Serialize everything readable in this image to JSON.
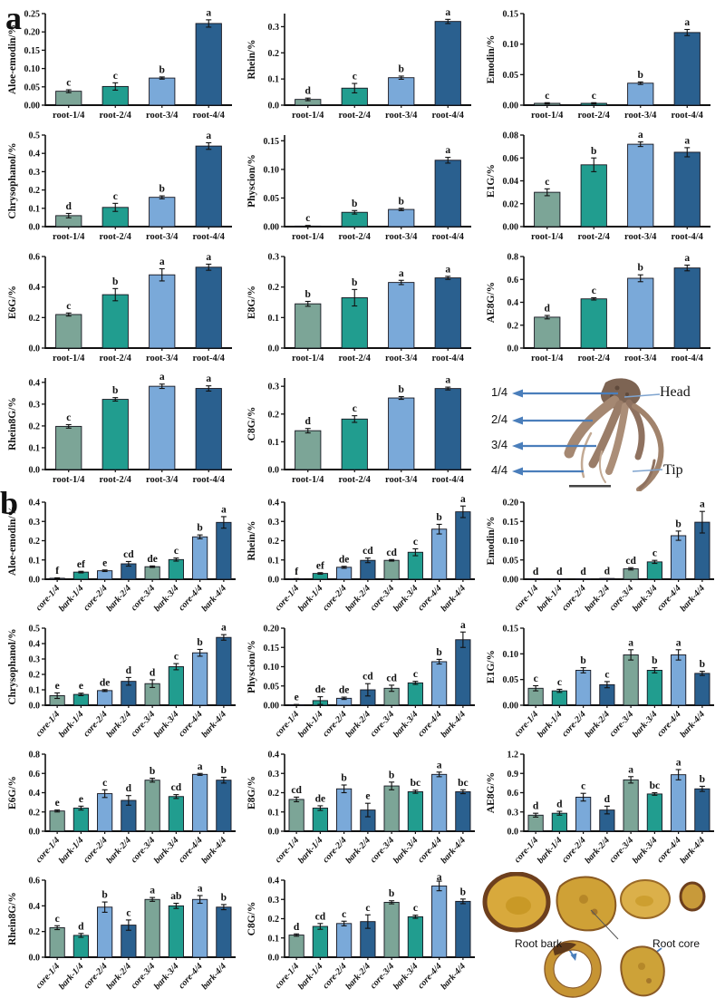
{
  "figure": {
    "panel_a_label": "a",
    "panel_b_label": "b"
  },
  "colors": {
    "bar_cycle": [
      "#7CA597",
      "#219D8F",
      "#7AA9D9",
      "#2A608F"
    ],
    "bar_stroke": "#15151f",
    "axis": "#111111",
    "error_bar": "#111111",
    "arrow_blue": "#4A7EBB",
    "slice_yellow": "#D2A338",
    "slice_rim_brown": "#6D3F1D",
    "root_brown": "#A58872"
  },
  "photos": {
    "a": {
      "sections": [
        "1/4",
        "2/4",
        "3/4",
        "4/4"
      ],
      "head": "Head",
      "tip": "Tip"
    },
    "b": {
      "bark": "Root bark",
      "core": "Root core"
    }
  },
  "chart_data": [
    {
      "panel": "a",
      "index": 0,
      "type": "bar",
      "ylabel": "Aloe-emodin/%",
      "ylim": [
        0,
        0.25
      ],
      "yticks": [
        "0.00",
        "0.05",
        "0.10",
        "0.15",
        "0.20",
        "0.25"
      ],
      "categories": [
        "root-1/4",
        "root-2/4",
        "root-3/4",
        "root-4/4"
      ],
      "values": [
        0.038,
        0.051,
        0.074,
        0.223
      ],
      "errors": [
        0.004,
        0.01,
        0.003,
        0.01
      ],
      "letters": [
        "c",
        "c",
        "b",
        "a"
      ]
    },
    {
      "panel": "a",
      "index": 1,
      "type": "bar",
      "ylabel": "Rhein/%",
      "ylim": [
        0,
        0.35
      ],
      "yticks": [
        "0.0",
        "0.1",
        "0.2",
        "0.3"
      ],
      "categories": [
        "root-1/4",
        "root-2/4",
        "root-3/4",
        "root-4/4"
      ],
      "values": [
        0.022,
        0.065,
        0.105,
        0.32
      ],
      "errors": [
        0.005,
        0.018,
        0.006,
        0.008
      ],
      "letters": [
        "d",
        "c",
        "b",
        "a"
      ]
    },
    {
      "panel": "a",
      "index": 2,
      "type": "bar",
      "ylabel": "Emodin/%",
      "ylim": [
        0,
        0.15
      ],
      "yticks": [
        "0.00",
        "0.05",
        "0.10",
        "0.15"
      ],
      "categories": [
        "root-1/4",
        "root-2/4",
        "root-3/4",
        "root-4/4"
      ],
      "values": [
        0.003,
        0.003,
        0.036,
        0.119
      ],
      "errors": [
        0.001,
        0.001,
        0.002,
        0.005
      ],
      "letters": [
        "c",
        "c",
        "b",
        "a"
      ]
    },
    {
      "panel": "a",
      "index": 3,
      "type": "bar",
      "ylabel": "Chrysophanol/%",
      "ylim": [
        0,
        0.5
      ],
      "yticks": [
        "0.0",
        "0.1",
        "0.2",
        "0.3",
        "0.4",
        "0.5"
      ],
      "categories": [
        "root-1/4",
        "root-2/4",
        "root-3/4",
        "root-4/4"
      ],
      "values": [
        0.06,
        0.105,
        0.16,
        0.44
      ],
      "errors": [
        0.012,
        0.022,
        0.008,
        0.018
      ],
      "letters": [
        "d",
        "c",
        "b",
        "a"
      ]
    },
    {
      "panel": "a",
      "index": 4,
      "type": "bar",
      "ylabel": "Physcion/%",
      "ylim": [
        0,
        0.16
      ],
      "yticks": [
        "0.00",
        "0.05",
        "0.10",
        "0.15"
      ],
      "categories": [
        "root-1/4",
        "root-2/4",
        "root-3/4",
        "root-4/4"
      ],
      "values": [
        0.001,
        0.025,
        0.03,
        0.116
      ],
      "errors": [
        0.001,
        0.003,
        0.002,
        0.005
      ],
      "letters": [
        "c",
        "b",
        "b",
        "a"
      ]
    },
    {
      "panel": "a",
      "index": 5,
      "type": "bar",
      "ylabel": "E1G/%",
      "ylim": [
        0,
        0.08
      ],
      "yticks": [
        "0.00",
        "0.02",
        "0.04",
        "0.06",
        "0.08"
      ],
      "categories": [
        "root-1/4",
        "root-2/4",
        "root-3/4",
        "root-4/4"
      ],
      "values": [
        0.03,
        0.054,
        0.072,
        0.065
      ],
      "errors": [
        0.003,
        0.006,
        0.002,
        0.004
      ],
      "letters": [
        "c",
        "b",
        "a",
        "a"
      ]
    },
    {
      "panel": "a",
      "index": 6,
      "type": "bar",
      "ylabel": "E6G/%",
      "ylim": [
        0,
        0.6
      ],
      "yticks": [
        "0.0",
        "0.2",
        "0.4",
        "0.6"
      ],
      "categories": [
        "root-1/4",
        "root-2/4",
        "root-3/4",
        "root-4/4"
      ],
      "values": [
        0.22,
        0.35,
        0.48,
        0.53
      ],
      "errors": [
        0.01,
        0.04,
        0.04,
        0.02
      ],
      "letters": [
        "c",
        "b",
        "a",
        "a"
      ]
    },
    {
      "panel": "a",
      "index": 7,
      "type": "bar",
      "ylabel": "E8G/%",
      "ylim": [
        0,
        0.3
      ],
      "yticks": [
        "0.0",
        "0.1",
        "0.2",
        "0.3"
      ],
      "categories": [
        "root-1/4",
        "root-2/4",
        "root-3/4",
        "root-4/4"
      ],
      "values": [
        0.145,
        0.165,
        0.215,
        0.23
      ],
      "errors": [
        0.008,
        0.027,
        0.007,
        0.005
      ],
      "letters": [
        "b",
        "b",
        "a",
        "a"
      ]
    },
    {
      "panel": "a",
      "index": 8,
      "type": "bar",
      "ylabel": "AE8G/%",
      "ylim": [
        0,
        0.8
      ],
      "yticks": [
        "0.0",
        "0.2",
        "0.4",
        "0.6",
        "0.8"
      ],
      "categories": [
        "root-1/4",
        "root-2/4",
        "root-3/4",
        "root-4/4"
      ],
      "values": [
        0.27,
        0.43,
        0.61,
        0.7
      ],
      "errors": [
        0.015,
        0.01,
        0.03,
        0.025
      ],
      "letters": [
        "d",
        "c",
        "b",
        "a"
      ]
    },
    {
      "panel": "a",
      "index": 9,
      "type": "bar",
      "ylabel": "Rhein8G/%",
      "ylim": [
        0,
        0.42
      ],
      "yticks": [
        "0.0",
        "0.1",
        "0.2",
        "0.3",
        "0.4"
      ],
      "categories": [
        "root-1/4",
        "root-2/4",
        "root-3/4",
        "root-4/4"
      ],
      "values": [
        0.198,
        0.322,
        0.382,
        0.372
      ],
      "errors": [
        0.008,
        0.008,
        0.01,
        0.012
      ],
      "letters": [
        "c",
        "b",
        "a",
        "a"
      ]
    },
    {
      "panel": "a",
      "index": 10,
      "type": "bar",
      "ylabel": "C8G/%",
      "ylim": [
        0,
        0.33
      ],
      "yticks": [
        "0.0",
        "0.1",
        "0.2",
        "0.3"
      ],
      "categories": [
        "root-1/4",
        "root-2/4",
        "root-3/4",
        "root-4/4"
      ],
      "values": [
        0.14,
        0.182,
        0.258,
        0.292
      ],
      "errors": [
        0.008,
        0.012,
        0.005,
        0.005
      ],
      "letters": [
        "d",
        "c",
        "b",
        "a"
      ]
    },
    {
      "panel": "b",
      "index": 0,
      "type": "bar",
      "ylabel": "Aloe-emodin/%",
      "ylim": [
        0,
        0.4
      ],
      "yticks": [
        "0.0",
        "0.1",
        "0.2",
        "0.3",
        "0.4"
      ],
      "categories": [
        "core-1/4",
        "bark-1/4",
        "core-2/4",
        "bark-2/4",
        "core-3/4",
        "bark-3/4",
        "core-4/4",
        "bark-4/4"
      ],
      "values": [
        0.005,
        0.037,
        0.044,
        0.08,
        0.065,
        0.102,
        0.22,
        0.295
      ],
      "errors": [
        0.002,
        0.004,
        0.004,
        0.012,
        0.004,
        0.008,
        0.01,
        0.03
      ],
      "letters": [
        "f",
        "ef",
        "e",
        "cd",
        "de",
        "c",
        "b",
        "a"
      ]
    },
    {
      "panel": "b",
      "index": 1,
      "type": "bar",
      "ylabel": "Rhein/%",
      "ylim": [
        0,
        0.4
      ],
      "yticks": [
        "0.0",
        "0.1",
        "0.2",
        "0.3",
        "0.4"
      ],
      "categories": [
        "core-1/4",
        "bark-1/4",
        "core-2/4",
        "bark-2/4",
        "core-3/4",
        "bark-3/4",
        "core-4/4",
        "bark-4/4"
      ],
      "values": [
        0.002,
        0.03,
        0.062,
        0.098,
        0.098,
        0.14,
        0.26,
        0.35
      ],
      "errors": [
        0.001,
        0.004,
        0.005,
        0.012,
        0.004,
        0.018,
        0.025,
        0.03
      ],
      "letters": [
        "f",
        "ef",
        "de",
        "cd",
        "cd",
        "c",
        "b",
        "a"
      ]
    },
    {
      "panel": "b",
      "index": 2,
      "type": "bar",
      "ylabel": "Emodin/%",
      "ylim": [
        0,
        0.2
      ],
      "yticks": [
        "0.00",
        "0.05",
        "0.10",
        "0.15",
        "0.20"
      ],
      "categories": [
        "core-1/4",
        "bark-1/4",
        "core-2/4",
        "bark-2/4",
        "core-3/4",
        "bark-3/4",
        "core-4/4",
        "bark-4/4"
      ],
      "values": [
        0.001,
        0.001,
        0.001,
        0.002,
        0.027,
        0.045,
        0.113,
        0.148
      ],
      "errors": [
        0,
        0,
        0,
        0,
        0.003,
        0.004,
        0.012,
        0.028
      ],
      "letters": [
        "d",
        "d",
        "d",
        "d",
        "cd",
        "c",
        "b",
        "a"
      ]
    },
    {
      "panel": "b",
      "index": 3,
      "type": "bar",
      "ylabel": "Chrysophanol/%",
      "ylim": [
        0,
        0.5
      ],
      "yticks": [
        "0.0",
        "0.1",
        "0.2",
        "0.3",
        "0.4",
        "0.5"
      ],
      "categories": [
        "core-1/4",
        "bark-1/4",
        "core-2/4",
        "bark-2/4",
        "core-3/4",
        "bark-3/4",
        "core-4/4",
        "bark-4/4"
      ],
      "values": [
        0.062,
        0.07,
        0.095,
        0.155,
        0.14,
        0.25,
        0.34,
        0.44
      ],
      "errors": [
        0.018,
        0.008,
        0.006,
        0.025,
        0.025,
        0.02,
        0.022,
        0.018
      ],
      "letters": [
        "e",
        "e",
        "de",
        "d",
        "d",
        "c",
        "b",
        "a"
      ]
    },
    {
      "panel": "b",
      "index": 4,
      "type": "bar",
      "ylabel": "Physcion/%",
      "ylim": [
        0,
        0.2
      ],
      "yticks": [
        "0.00",
        "0.05",
        "0.10",
        "0.15",
        "0.20"
      ],
      "categories": [
        "core-1/4",
        "bark-1/4",
        "core-2/4",
        "bark-2/4",
        "core-3/4",
        "bark-3/4",
        "core-4/4",
        "bark-4/4"
      ],
      "values": [
        0.001,
        0.012,
        0.018,
        0.04,
        0.044,
        0.058,
        0.113,
        0.17
      ],
      "errors": [
        0.001,
        0.01,
        0.003,
        0.016,
        0.008,
        0.004,
        0.006,
        0.02
      ],
      "letters": [
        "e",
        "de",
        "de",
        "cd",
        "cd",
        "c",
        "b",
        "a"
      ]
    },
    {
      "panel": "b",
      "index": 5,
      "type": "bar",
      "ylabel": "E1G/%",
      "ylim": [
        0,
        0.15
      ],
      "yticks": [
        "0.00",
        "0.05",
        "0.10",
        "0.15"
      ],
      "categories": [
        "core-1/4",
        "bark-1/4",
        "core-2/4",
        "bark-2/4",
        "core-3/4",
        "bark-3/4",
        "core-4/4",
        "bark-4/4"
      ],
      "values": [
        0.033,
        0.028,
        0.068,
        0.04,
        0.098,
        0.068,
        0.098,
        0.062
      ],
      "errors": [
        0.005,
        0.003,
        0.005,
        0.006,
        0.01,
        0.005,
        0.01,
        0.004
      ],
      "letters": [
        "c",
        "c",
        "b",
        "c",
        "a",
        "b",
        "a",
        "b"
      ]
    },
    {
      "panel": "b",
      "index": 6,
      "type": "bar",
      "ylabel": "E6G/%",
      "ylim": [
        0,
        0.8
      ],
      "yticks": [
        "0.0",
        "0.2",
        "0.4",
        "0.6",
        "0.8"
      ],
      "categories": [
        "core-1/4",
        "bark-1/4",
        "core-2/4",
        "bark-2/4",
        "core-3/4",
        "bark-3/4",
        "core-4/4",
        "bark-4/4"
      ],
      "values": [
        0.21,
        0.24,
        0.39,
        0.32,
        0.53,
        0.36,
        0.59,
        0.53
      ],
      "errors": [
        0.01,
        0.02,
        0.04,
        0.05,
        0.02,
        0.02,
        0.01,
        0.03
      ],
      "letters": [
        "e",
        "e",
        "c",
        "d",
        "b",
        "cd",
        "a",
        "b"
      ]
    },
    {
      "panel": "b",
      "index": 7,
      "type": "bar",
      "ylabel": "E8G/%",
      "ylim": [
        0,
        0.4
      ],
      "yticks": [
        "0.0",
        "0.1",
        "0.2",
        "0.3",
        "0.4"
      ],
      "categories": [
        "core-1/4",
        "bark-1/4",
        "core-2/4",
        "bark-2/4",
        "core-3/4",
        "bark-3/4",
        "core-4/4",
        "bark-4/4"
      ],
      "values": [
        0.165,
        0.12,
        0.22,
        0.11,
        0.235,
        0.205,
        0.295,
        0.205
      ],
      "errors": [
        0.012,
        0.012,
        0.02,
        0.035,
        0.02,
        0.008,
        0.012,
        0.01
      ],
      "letters": [
        "cd",
        "de",
        "b",
        "e",
        "b",
        "bc",
        "a",
        "bc"
      ]
    },
    {
      "panel": "b",
      "index": 8,
      "type": "bar",
      "ylabel": "AE8G/%",
      "ylim": [
        0,
        1.2
      ],
      "yticks": [
        "0.0",
        "0.3",
        "0.6",
        "0.9",
        "1.2"
      ],
      "categories": [
        "core-1/4",
        "bark-1/4",
        "core-2/4",
        "bark-2/4",
        "core-3/4",
        "bark-3/4",
        "core-4/4",
        "bark-4/4"
      ],
      "values": [
        0.25,
        0.28,
        0.53,
        0.33,
        0.8,
        0.58,
        0.88,
        0.66
      ],
      "errors": [
        0.03,
        0.03,
        0.06,
        0.06,
        0.05,
        0.02,
        0.08,
        0.04
      ],
      "letters": [
        "d",
        "d",
        "c",
        "d",
        "a",
        "bc",
        "a",
        "b"
      ]
    },
    {
      "panel": "b",
      "index": 9,
      "type": "bar",
      "ylabel": "Rhein8G/%",
      "ylim": [
        0,
        0.6
      ],
      "yticks": [
        "0.0",
        "0.2",
        "0.4",
        "0.6"
      ],
      "categories": [
        "core-1/4",
        "bark-1/4",
        "core-2/4",
        "bark-2/4",
        "core-3/4",
        "bark-3/4",
        "core-4/4",
        "bark-4/4"
      ],
      "values": [
        0.23,
        0.17,
        0.39,
        0.25,
        0.45,
        0.4,
        0.45,
        0.39
      ],
      "errors": [
        0.015,
        0.015,
        0.04,
        0.04,
        0.015,
        0.02,
        0.03,
        0.02
      ],
      "letters": [
        "c",
        "d",
        "b",
        "c",
        "a",
        "ab",
        "a",
        "b"
      ]
    },
    {
      "panel": "b",
      "index": 10,
      "type": "bar",
      "ylabel": "C8G/%",
      "ylim": [
        0,
        0.4
      ],
      "yticks": [
        "0.0",
        "0.1",
        "0.2",
        "0.3",
        "0.4"
      ],
      "categories": [
        "core-1/4",
        "bark-1/4",
        "core-2/4",
        "bark-2/4",
        "core-3/4",
        "bark-3/4",
        "core-4/4",
        "bark-4/4"
      ],
      "values": [
        0.115,
        0.16,
        0.175,
        0.185,
        0.285,
        0.21,
        0.37,
        0.29
      ],
      "errors": [
        0.006,
        0.015,
        0.012,
        0.035,
        0.008,
        0.008,
        0.025,
        0.012
      ],
      "letters": [
        "d",
        "cd",
        "c",
        "c",
        "b",
        "c",
        "a",
        "b"
      ]
    }
  ]
}
